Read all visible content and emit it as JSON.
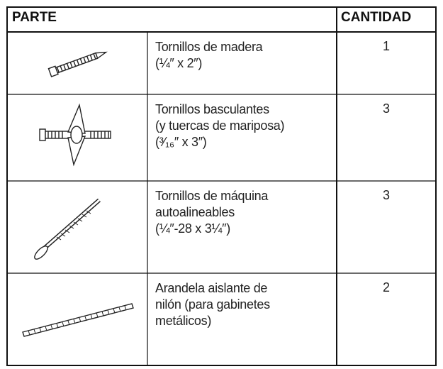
{
  "table": {
    "header": [
      "PARTE",
      "CANTIDAD"
    ],
    "rows": [
      {
        "description": [
          "Tornillos de madera",
          "(¼″ x 2″)"
        ],
        "quantity": 1
      },
      {
        "description": [
          "Tornillos basculantes",
          "(y tuercas de mariposa)",
          "(³⁄₁₆″ x 3″)"
        ],
        "quantity": 3
      },
      {
        "description": [
          "Tornillos de máquina",
          "autoalineables",
          "(¼″-28 x 3¼″)"
        ],
        "quantity": 3
      },
      {
        "description": [
          "Arandela aislante de",
          "nilón (para gabinetes",
          "metálicos)"
        ],
        "quantity": 2
      }
    ]
  }
}
